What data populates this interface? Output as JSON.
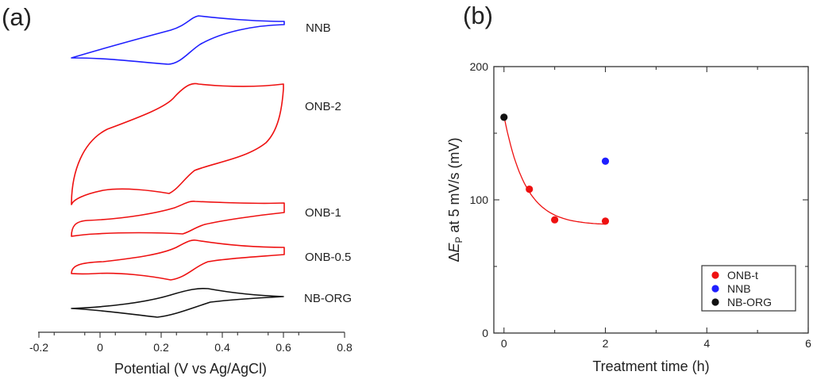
{
  "chart_data": [
    {
      "panel_label": "(a)",
      "type": "line",
      "title": "",
      "xlabel": "Potential (V vs  Ag/AgCl)",
      "ylabel": "",
      "xlim": [
        -0.2,
        0.8
      ],
      "xticks": [
        "-0.2",
        "0",
        "0.2",
        "0.4",
        "0.6",
        "0.8"
      ],
      "series": [
        {
          "name": "NNB",
          "color": "#1f1fff",
          "x_range": [
            -0.1,
            0.6
          ]
        },
        {
          "name": "ONB-2",
          "color": "#ee1111",
          "x_range": [
            -0.1,
            0.6
          ]
        },
        {
          "name": "ONB-1",
          "color": "#ee1111",
          "x_range": [
            -0.1,
            0.6
          ]
        },
        {
          "name": "ONB-0.5",
          "color": "#ee1111",
          "x_range": [
            -0.1,
            0.6
          ]
        },
        {
          "name": "NB-ORG",
          "color": "#111111",
          "x_range": [
            -0.1,
            0.6
          ]
        }
      ]
    },
    {
      "panel_label": "(b)",
      "type": "scatter",
      "title": "",
      "xlabel": "Treatment time (h)",
      "ylabel_prefix": "Δ",
      "ylabel_symbol": "E",
      "ylabel_subscript": "P",
      "ylabel_suffix": " at 5 mV/s (mV)",
      "xlim": [
        -0.2,
        6
      ],
      "ylim": [
        0,
        200
      ],
      "xticks": [
        "0",
        "2",
        "4",
        "6"
      ],
      "yticks": [
        "0",
        "100",
        "200"
      ],
      "series": [
        {
          "name": "ONB-t",
          "color": "#ee1111",
          "x": [
            0.5,
            1,
            2
          ],
          "y": [
            108,
            85,
            84
          ]
        },
        {
          "name": "NNB",
          "color": "#1f1fff",
          "x": [
            2
          ],
          "y": [
            129
          ]
        },
        {
          "name": "NB-ORG",
          "color": "#111111",
          "x": [
            0
          ],
          "y": [
            162
          ]
        }
      ],
      "fit": {
        "color": "#ee1111",
        "type": "exponential",
        "x": [
          0,
          2
        ],
        "y0": 163,
        "plateau": 81,
        "tau_h": 0.42
      },
      "legend": {
        "placement": "bottom-right",
        "entries": [
          "ONB-t",
          "NNB",
          "NB-ORG"
        ]
      }
    }
  ]
}
